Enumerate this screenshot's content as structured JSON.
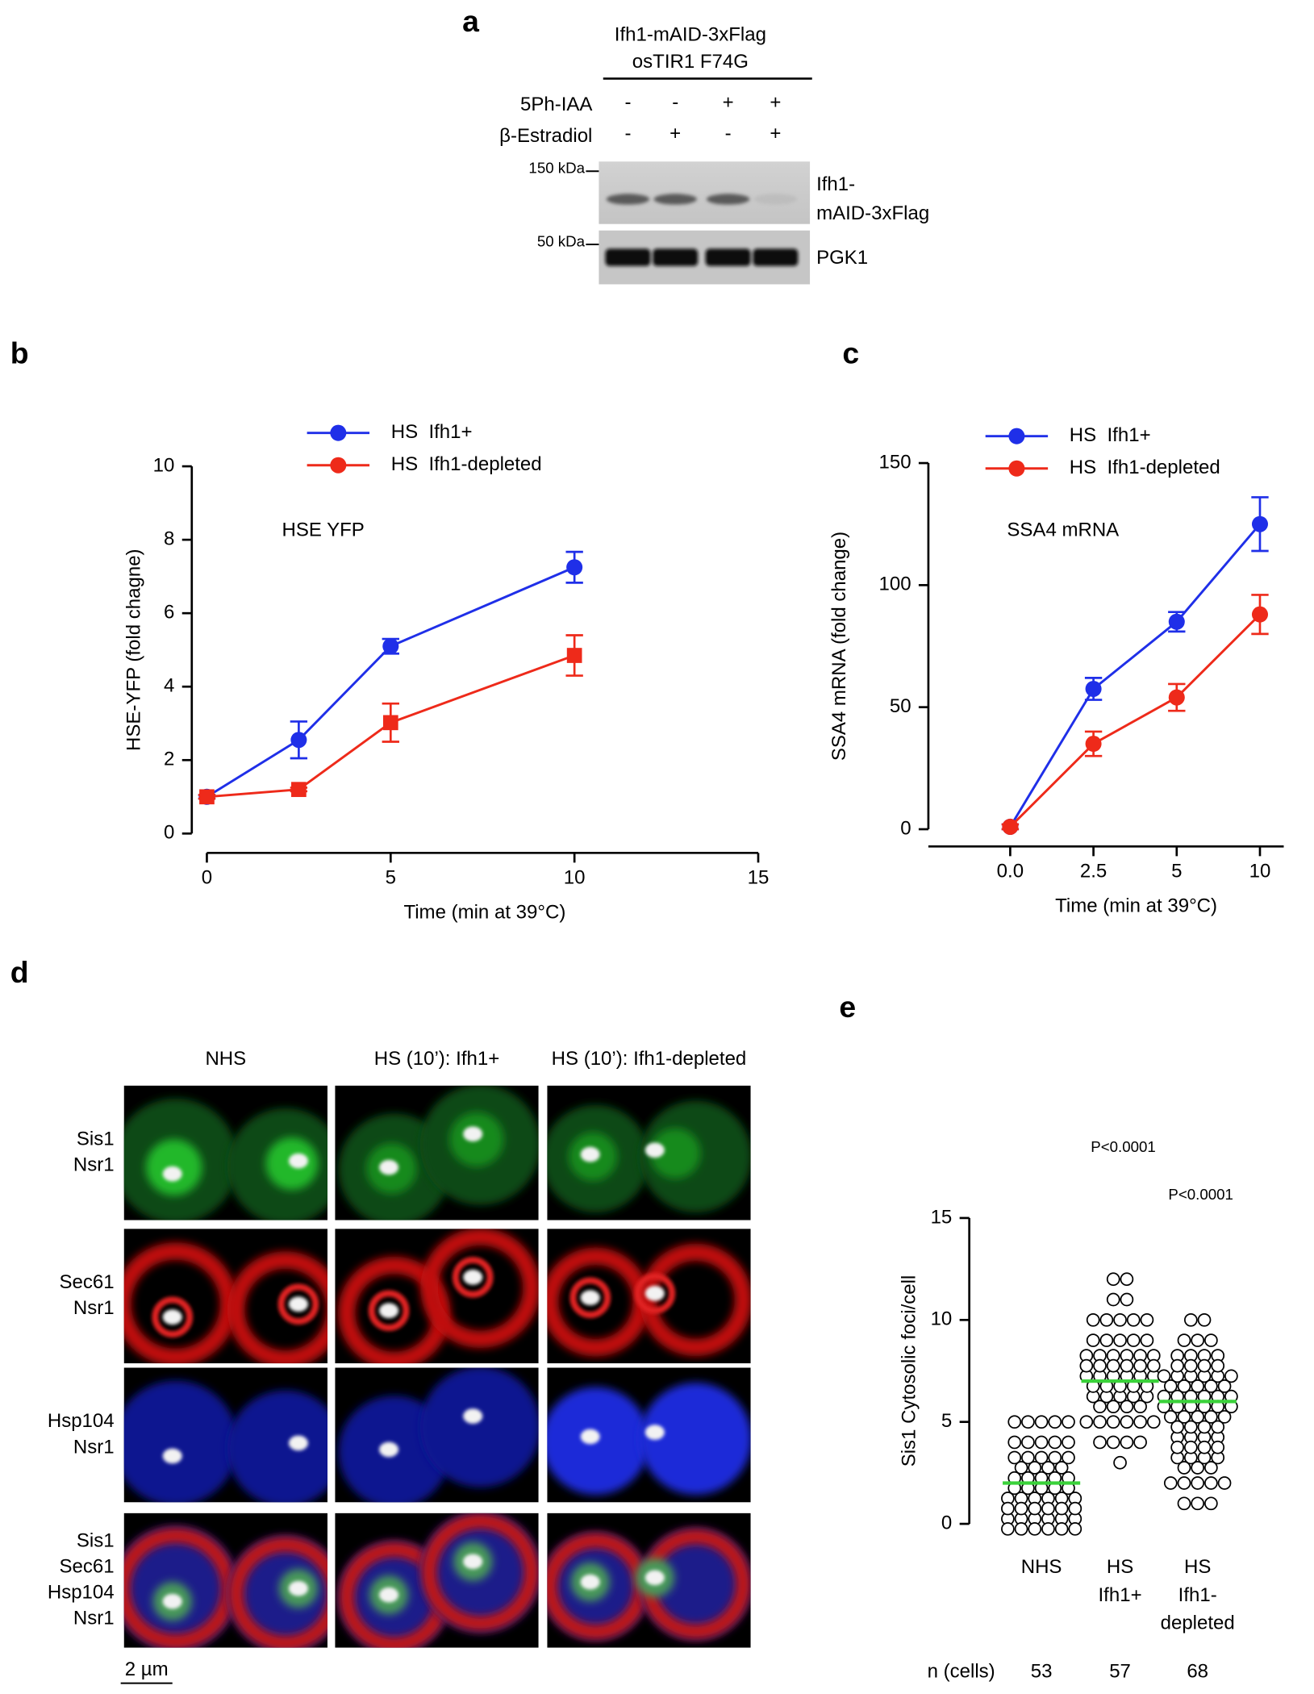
{
  "panel_labels": [
    "a",
    "b",
    "c",
    "d",
    "e"
  ],
  "blot": {
    "strain": [
      "Ifh1-mAID-3xFlag",
      "osTIR1 F74G"
    ],
    "treatments": [
      {
        "name": "5Ph-IAA",
        "signs": [
          "-",
          "-",
          "+",
          "+"
        ]
      },
      {
        "name": "β-Estradiol",
        "signs": [
          "-",
          "+",
          "-",
          "+"
        ]
      }
    ],
    "markers": [
      "150 kDa",
      "50 kDa"
    ],
    "bands": [
      [
        "Ifh1-",
        "mAID-3xFlag"
      ],
      [
        "PGK1"
      ]
    ]
  },
  "microscopy": {
    "columns": [
      "NHS",
      "HS (10’): Ifh1+",
      "HS (10’): Ifh1-depleted"
    ],
    "rows": [
      [
        {
          "text": "Sis1",
          "color": "#1a9e2e"
        },
        {
          "text": "Nsr1",
          "color": "#000000"
        }
      ],
      [
        {
          "text": "Sec61",
          "color": "#e01b1b"
        },
        {
          "text": "Nsr1",
          "color": "#000000"
        }
      ],
      [
        {
          "text": "Hsp104",
          "color": "#2233dd"
        },
        {
          "text": "Nsr1",
          "color": "#000000"
        }
      ],
      [
        {
          "text": "Sis1",
          "color": "#1a9e2e"
        },
        {
          "text": "Sec61",
          "color": "#e01b1b"
        },
        {
          "text": "Hsp104",
          "color": "#2233dd"
        },
        {
          "text": "Nsr1",
          "color": "#000000"
        }
      ]
    ],
    "scale_bar": "2 µm"
  },
  "chart_data": [
    {
      "type": "line",
      "annotation": "HSE YFP",
      "xlabel": "Time (min at 39°C)",
      "ylabel": "HSE-YFP (fold chagne)",
      "x": [
        0,
        2.5,
        5,
        10
      ],
      "xlim": [
        0,
        15
      ],
      "xticks": [
        0,
        5,
        10,
        15
      ],
      "ylim": [
        0,
        10
      ],
      "yticks": [
        0,
        2,
        4,
        6,
        8,
        10
      ],
      "series": [
        {
          "name": "HS  Ifh1+",
          "color": "#1f2fe8",
          "marker": "circle",
          "values": [
            1,
            2.55,
            5.1,
            7.25
          ],
          "errors": [
            0.05,
            0.5,
            0.2,
            0.42
          ]
        },
        {
          "name": "HS  Ifh1-depleted",
          "color": "#ee2a1a",
          "marker": "square",
          "values": [
            1,
            1.2,
            3.02,
            4.85
          ],
          "errors": [
            0.05,
            0.05,
            0.52,
            0.55
          ]
        }
      ]
    },
    {
      "type": "line",
      "annotation": "SSA4 mRNA",
      "xlabel": "Time (min at 39°C)",
      "ylabel": "SSA4 mRNA (fold change)",
      "categories": [
        "0.0",
        "2.5",
        "5",
        "10"
      ],
      "ylim": [
        0,
        150
      ],
      "yticks": [
        0,
        50,
        100,
        150
      ],
      "series": [
        {
          "name": "HS  Ifh1+",
          "color": "#1f2fe8",
          "marker": "circle",
          "values": [
            1,
            57.5,
            85,
            125
          ],
          "errors": [
            1,
            4.5,
            4,
            11
          ]
        },
        {
          "name": "HS  Ifh1-depleted",
          "color": "#ee2a1a",
          "marker": "circle",
          "values": [
            1,
            35,
            54,
            88
          ],
          "errors": [
            1,
            5,
            5.5,
            8
          ]
        }
      ]
    },
    {
      "type": "strip",
      "ylabel": "Sis1 Cytosolic foci/cell",
      "ylim": [
        0,
        15
      ],
      "yticks": [
        0,
        5,
        10,
        15
      ],
      "categories": [
        [
          "NHS"
        ],
        [
          "HS",
          "Ifh1+"
        ],
        [
          "HS",
          "Ifh1-",
          "depleted"
        ]
      ],
      "marker_color": "#000000",
      "median_color": "#3ad23a",
      "medians": [
        2,
        7,
        6
      ],
      "p_values": [
        null,
        "P<0.0001",
        "P<0.0001"
      ],
      "n_label": "n (cells)",
      "n": [
        53,
        57,
        68
      ],
      "values": [
        [
          0,
          0,
          0,
          0,
          0,
          0,
          0,
          0,
          0,
          0,
          0,
          0,
          1,
          1,
          1,
          1,
          1,
          1,
          1,
          1,
          1,
          1,
          1,
          1,
          2,
          2,
          2,
          2,
          2,
          2,
          2,
          2,
          2,
          2,
          3,
          3,
          3,
          3,
          3,
          3,
          3,
          3,
          3,
          4,
          4,
          4,
          4,
          4,
          5,
          5,
          5,
          5,
          5
        ],
        [
          3,
          4,
          4,
          4,
          4,
          5,
          5,
          5,
          5,
          5,
          5,
          6,
          6,
          6,
          6,
          6,
          6,
          6,
          6,
          6,
          7,
          7,
          7,
          7,
          7,
          7,
          7,
          7,
          7,
          7,
          7,
          8,
          8,
          8,
          8,
          8,
          8,
          8,
          8,
          8,
          8,
          8,
          8,
          9,
          9,
          9,
          9,
          9,
          10,
          10,
          10,
          10,
          10,
          11,
          11,
          12,
          12
        ],
        [
          1,
          1,
          1,
          2,
          2,
          2,
          2,
          2,
          3,
          3,
          3,
          3,
          3,
          3,
          3,
          4,
          4,
          4,
          4,
          4,
          4,
          4,
          4,
          5,
          5,
          5,
          5,
          5,
          5,
          5,
          5,
          5,
          6,
          6,
          6,
          6,
          6,
          6,
          6,
          6,
          6,
          6,
          6,
          6,
          7,
          7,
          7,
          7,
          7,
          7,
          7,
          7,
          7,
          7,
          7,
          8,
          8,
          8,
          8,
          8,
          8,
          8,
          8,
          9,
          9,
          9,
          10,
          10
        ]
      ]
    }
  ]
}
